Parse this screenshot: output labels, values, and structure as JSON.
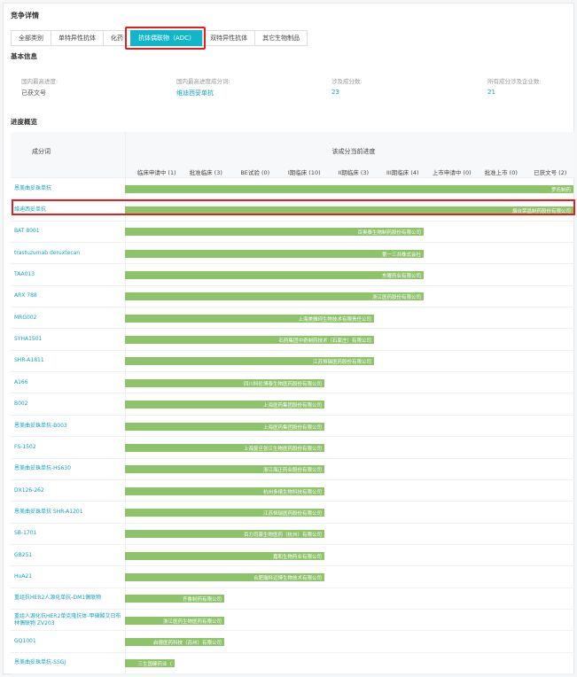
{
  "header": {
    "title": "竞争详情"
  },
  "tabs": [
    {
      "label": "全部类别",
      "active": false
    },
    {
      "label": "单特异性抗体",
      "active": false
    },
    {
      "label": "化药",
      "active": false
    },
    {
      "label": "抗体偶联物（ADC）",
      "active": true
    },
    {
      "label": "双特异性抗体",
      "active": false
    },
    {
      "label": "其它生物制品",
      "active": false
    }
  ],
  "basic_info": {
    "title": "基本信息",
    "items": [
      {
        "label": "国内最高进度:",
        "value": "已获文号",
        "link": false
      },
      {
        "label": "国内最高进度成分词:",
        "value": "维迪西妥单抗",
        "link": true
      },
      {
        "label": "涉及成分数:",
        "value": "23",
        "link": true
      },
      {
        "label": "所有成分涉及企业数:",
        "value": "21",
        "link": true
      }
    ]
  },
  "progress": {
    "title": "进度概览",
    "name_header": "成分词",
    "group_header": "该成分当前进度",
    "stages": [
      "临床申请中 (1)",
      "批准临床 (3)",
      "BE试验 (0)",
      "I期临床 (10)",
      "II期临床 (3)",
      "III期临床 (4)",
      "上市申请中 (0)",
      "批准上市 (0)",
      "已获文号 (2)"
    ],
    "rows": [
      {
        "name": "恩美曲妥珠单抗",
        "company": "罗氏制药",
        "stage": 9
      },
      {
        "name": "维迪西妥单抗",
        "company": "烟台荣昌制药股份有限公司",
        "stage": 9
      },
      {
        "name": "BAT 8001",
        "company": "百奥泰生物制药股份有限公司",
        "stage": 6
      },
      {
        "name": "trastuzumab deruxtecan",
        "company": "第一三共株式会社",
        "stage": 6
      },
      {
        "name": "TAA013",
        "company": "东曜药业有限公司",
        "stage": 6
      },
      {
        "name": "ARX 788",
        "company": "浙江医药股份有限公司",
        "stage": 6
      },
      {
        "name": "MRG002",
        "company": "上海美雅珂生物技术有限责任公司",
        "stage": 5
      },
      {
        "name": "SYHA1501",
        "company": "石药集团中奇制药技术（石家庄）有限公司",
        "stage": 5
      },
      {
        "name": "SHR-A1811",
        "company": "江苏恒瑞医药股份有限公司",
        "stage": 5
      },
      {
        "name": "A166",
        "company": "四川科伦博泰生物医药股份有限公司",
        "stage": 4
      },
      {
        "name": "B002",
        "company": "上海医药集团股份有限公司",
        "stage": 4
      },
      {
        "name": "恩美曲妥珠单抗-B003",
        "company": "上海医药集团股份有限公司",
        "stage": 4
      },
      {
        "name": "FS-1502",
        "company": "上海复旦张江生物医药股份有限公司",
        "stage": 4
      },
      {
        "name": "恩美曲妥珠单抗-HS630",
        "company": "浙江海正药业股份有限公司",
        "stage": 4
      },
      {
        "name": "DX126-262",
        "company": "杭州多禧生物科技有限公司",
        "stage": 4
      },
      {
        "name": "恩美曲妥珠单抗 SHR-A1201",
        "company": "江苏恒瑞医药股份有限公司",
        "stage": 4
      },
      {
        "name": "SB-1701",
        "company": "百力司康生物医药（杭州）有限公司",
        "stage": 4
      },
      {
        "name": "GB251",
        "company": "嘉和生物药业有限公司",
        "stage": 4
      },
      {
        "name": "HuA21",
        "company": "合肥瀚科迈博生物技术有限公司",
        "stage": 4
      },
      {
        "name": "重组抗HER2人源化单抗-DM1偶联物",
        "company": "齐鲁制药有限公司",
        "stage": 2
      },
      {
        "name": "重组人源化抗HER2单克隆抗体-甲磺酸艾日布林偶联物 ZV203",
        "company": "浙江医药生物医药有限公司",
        "stage": 2
      },
      {
        "name": "GQ1001",
        "company": "启德医药科技（苏州）有限公司",
        "stage": 2
      },
      {
        "name": "恩美曲妥珠单抗-SSGJ",
        "company": "三生国健药业（",
        "stage": 1
      }
    ]
  }
}
